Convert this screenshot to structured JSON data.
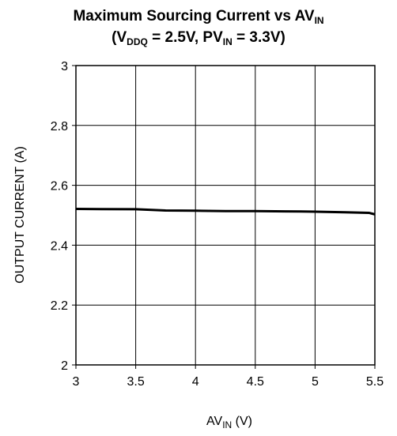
{
  "chart_data": {
    "type": "line",
    "title": {
      "line1_main": "Maximum Sourcing Current vs AV",
      "line1_sub": "IN",
      "line2_open": "(V",
      "line2_sub1": "DDQ",
      "line2_mid": " = 2.5V, PV",
      "line2_sub2": "IN",
      "line2_close": " = 3.3V)"
    },
    "xlabel": {
      "main": "AV",
      "sub": "IN",
      "unit": " (V)"
    },
    "ylabel": "OUTPUT CURRENT (A)",
    "xlim": [
      3,
      5.5
    ],
    "ylim": [
      2,
      3
    ],
    "xticks": [
      "3",
      "3.5",
      "4",
      "4.5",
      "5",
      "5.5"
    ],
    "yticks": [
      "2",
      "2.2",
      "2.4",
      "2.6",
      "2.8",
      "3"
    ],
    "grid": true,
    "series": [
      {
        "x": [
          3.0,
          3.5,
          3.75,
          4.0,
          4.25,
          4.5,
          4.75,
          5.0,
          5.25,
          5.45,
          5.5
        ],
        "y": [
          2.521,
          2.52,
          2.516,
          2.515,
          2.514,
          2.514,
          2.513,
          2.512,
          2.51,
          2.508,
          2.503
        ]
      }
    ]
  }
}
